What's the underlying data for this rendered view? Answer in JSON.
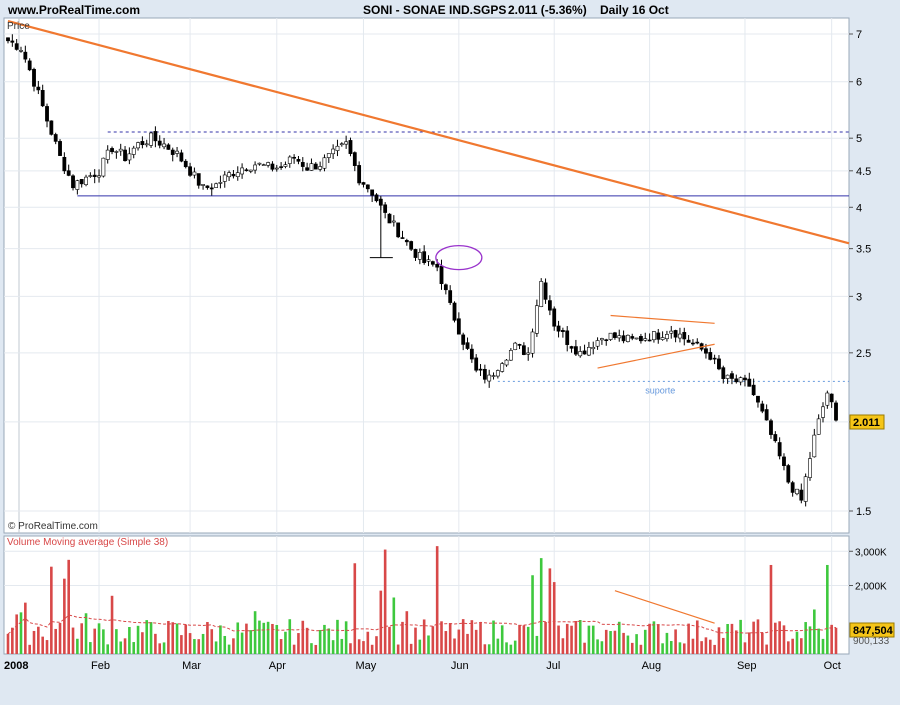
{
  "header": {
    "site": "www.ProRealTime.com",
    "symbol_title": "SONI - SONAE IND.SGPS",
    "quote": "2.011 (-5.36%)",
    "period": "Daily  16 Oct"
  },
  "copyright": "© ProRealTime.com",
  "price_panel": {
    "label": "Price",
    "last_price": "2.011"
  },
  "volume_panel": {
    "label": "Volume Moving average (Simple 38)",
    "last_volume": "847,504",
    "avg_volume": "900,133"
  },
  "colors": {
    "up": "#3ec83e",
    "down": "#d84848",
    "trendline": "#f07830",
    "resistance": "#3333aa",
    "support": "#6699dd",
    "ellipse": "#9933cc",
    "last_label_bg": "#f5c518"
  },
  "annotations": {
    "support_label": "suporte"
  },
  "chart_data": [
    {
      "type": "candlestick",
      "scale": "log",
      "ylim": [
        1.42,
        7.5
      ],
      "y_ticks": [
        "7",
        "6",
        "5",
        "4.5",
        "4",
        "3.5",
        "3",
        "2.5",
        "2",
        "1.5"
      ],
      "y_tick_values": [
        7,
        6,
        5,
        4.5,
        4,
        3.5,
        3,
        2.5,
        2,
        1.5
      ],
      "x_labels": [
        "2008",
        "Feb",
        "Mar",
        "Apr",
        "May",
        "Jun",
        "Jul",
        "Aug",
        "Sep",
        "Oct"
      ],
      "last": 2.011,
      "close_points": [
        [
          0,
          6.85
        ],
        [
          3,
          6.7
        ],
        [
          6,
          6.0
        ],
        [
          9,
          5.3
        ],
        [
          12,
          4.7
        ],
        [
          15,
          4.3
        ],
        [
          18,
          4.4
        ],
        [
          21,
          4.5
        ],
        [
          24,
          4.85
        ],
        [
          27,
          4.7
        ],
        [
          30,
          4.9
        ],
        [
          33,
          5.0
        ],
        [
          36,
          4.9
        ],
        [
          39,
          4.75
        ],
        [
          42,
          4.5
        ],
        [
          45,
          4.25
        ],
        [
          48,
          4.3
        ],
        [
          51,
          4.45
        ],
        [
          54,
          4.55
        ],
        [
          57,
          4.6
        ],
        [
          60,
          4.55
        ],
        [
          63,
          4.55
        ],
        [
          66,
          4.7
        ],
        [
          69,
          4.55
        ],
        [
          72,
          4.6
        ],
        [
          75,
          4.75
        ],
        [
          78,
          4.9
        ],
        [
          81,
          4.4
        ],
        [
          84,
          4.2
        ],
        [
          87,
          3.9
        ],
        [
          90,
          3.7
        ],
        [
          93,
          3.5
        ],
        [
          96,
          3.35
        ],
        [
          99,
          3.3
        ],
        [
          102,
          2.9
        ],
        [
          105,
          2.6
        ],
        [
          108,
          2.35
        ],
        [
          111,
          2.3
        ],
        [
          114,
          2.45
        ],
        [
          117,
          2.55
        ],
        [
          120,
          2.5
        ],
        [
          123,
          3.15
        ],
        [
          126,
          2.75
        ],
        [
          129,
          2.6
        ],
        [
          132,
          2.5
        ],
        [
          135,
          2.58
        ],
        [
          138,
          2.65
        ],
        [
          141,
          2.62
        ],
        [
          144,
          2.6
        ],
        [
          147,
          2.63
        ],
        [
          150,
          2.65
        ],
        [
          153,
          2.7
        ],
        [
          156,
          2.62
        ],
        [
          159,
          2.55
        ],
        [
          162,
          2.48
        ],
        [
          165,
          2.3
        ],
        [
          168,
          2.28
        ],
        [
          171,
          2.25
        ],
        [
          174,
          2.05
        ],
        [
          177,
          1.85
        ],
        [
          180,
          1.65
        ],
        [
          183,
          1.55
        ],
        [
          186,
          1.9
        ],
        [
          189,
          2.2
        ],
        [
          191,
          2.011
        ]
      ],
      "trendline": {
        "from": [
          0,
          7.3
        ],
        "to": [
          191,
          3.6
        ]
      },
      "levels": [
        {
          "name": "resistance",
          "value": 5.1,
          "style": "dashed"
        },
        {
          "name": "neckline",
          "value": 4.15,
          "style": "solid"
        },
        {
          "name": "support",
          "value": 2.28,
          "style": "dashed",
          "label": "suporte"
        }
      ],
      "measured_move": {
        "x": 86,
        "from": 4.15,
        "to": 3.4
      },
      "triangle": {
        "upper": [
          [
            139,
            2.82
          ],
          [
            163,
            2.75
          ]
        ],
        "lower": [
          [
            136,
            2.38
          ],
          [
            163,
            2.57
          ]
        ]
      },
      "ellipse_at": {
        "x": 104,
        "y": 3.4
      }
    },
    {
      "type": "bar",
      "series_name": "Volume",
      "y_ticks": [
        "3,000K",
        "2,000K"
      ],
      "y_tick_values": [
        3000,
        2000
      ],
      "ylim": [
        0,
        3300
      ],
      "last_volume": 847.504,
      "moving_average": {
        "period": 38,
        "label": "Volume Moving average (Simple 38)"
      }
    }
  ]
}
